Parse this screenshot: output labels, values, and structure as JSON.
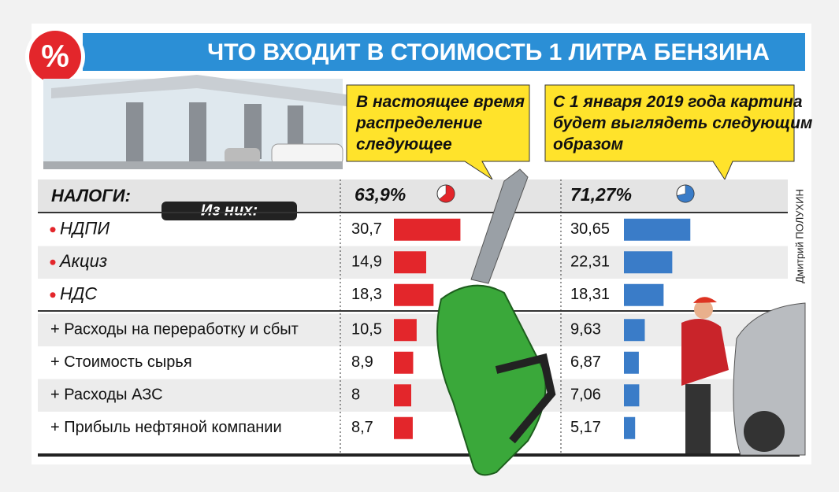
{
  "chart_data": {
    "type": "bar",
    "badge": "%",
    "title": "ЧТО ВХОДИТ В СТОИМОСТЬ 1 ЛИТРА БЕНЗИНА",
    "total_label": "НАЛОГИ:",
    "subheader": "Из них:",
    "credit": "Дмитрий ПОЛУХИН",
    "categories": [
      "НДПИ",
      "Акциз",
      "НДС",
      "+ Расходы на переработку и сбыт",
      "+ Стоимость сырья",
      "+ Расходы АЗС",
      "+ Прибыль нефтяной компании"
    ],
    "series": [
      {
        "name": "В настоящее время распределение следующее",
        "color": "#e3262b",
        "total": 63.9,
        "total_label": "63,9%",
        "values": [
          30.7,
          14.9,
          18.3,
          10.5,
          8.9,
          8,
          8.7
        ],
        "value_labels": [
          "30,7",
          "14,9",
          "18,3",
          "10,5",
          "8,9",
          "8",
          "8,7"
        ]
      },
      {
        "name": "С 1 января 2019 года картина будет выглядеть следующим образом",
        "color": "#3a7cc8",
        "total": 71.27,
        "total_label": "71,27%",
        "values": [
          30.65,
          22.31,
          18.31,
          9.63,
          6.87,
          7.06,
          5.17
        ],
        "value_labels": [
          "30,65",
          "22,31",
          "18,31",
          "9,63",
          "6,87",
          "7,06",
          "5,17"
        ]
      }
    ]
  }
}
